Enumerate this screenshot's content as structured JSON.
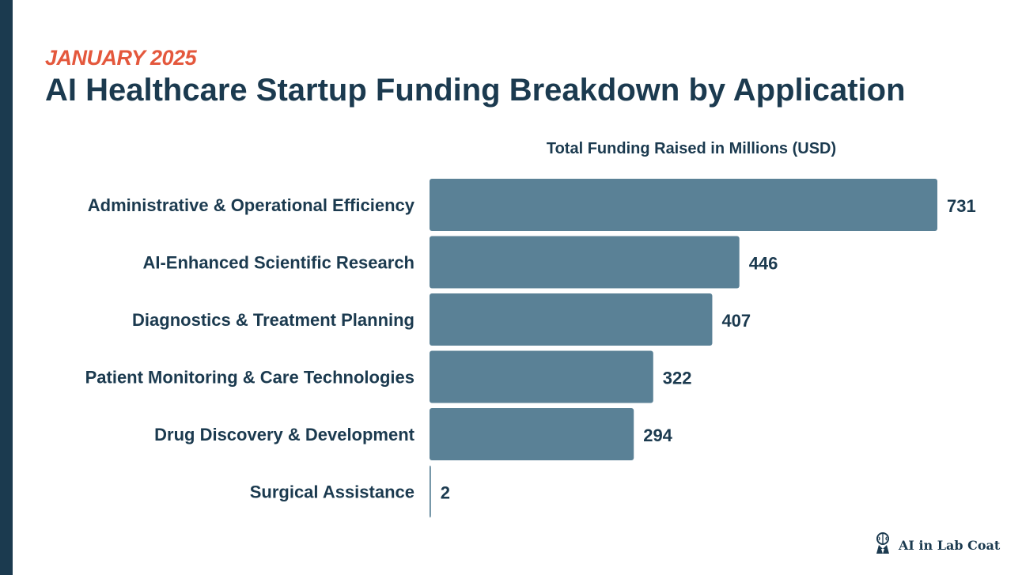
{
  "header": {
    "subtitle": "JANUARY 2025",
    "title": "AI Healthcare Startup Funding Breakdown by Application"
  },
  "chart_data": {
    "type": "bar",
    "orientation": "horizontal",
    "title": "Total Funding Raised in Millions (USD)",
    "xlabel": "Total Funding Raised in Millions (USD)",
    "ylabel": "",
    "categories": [
      "Administrative & Operational Efficiency",
      "AI-Enhanced Scientific Research",
      "Diagnostics & Treatment Planning",
      "Patient Monitoring & Care Technologies",
      "Drug Discovery & Development",
      "Surgical Assistance"
    ],
    "values": [
      731,
      446,
      407,
      322,
      294,
      2
    ],
    "xlim": [
      0,
      731
    ],
    "grid": false,
    "legend": "none"
  },
  "brand": {
    "name": "AI in Lab Coat",
    "icon": "brain-lab-coat-icon"
  },
  "colors": {
    "bar": "#5a8196",
    "title": "#1b3a4f",
    "accent": "#e4583d",
    "sidebar": "#1b3a4f"
  }
}
